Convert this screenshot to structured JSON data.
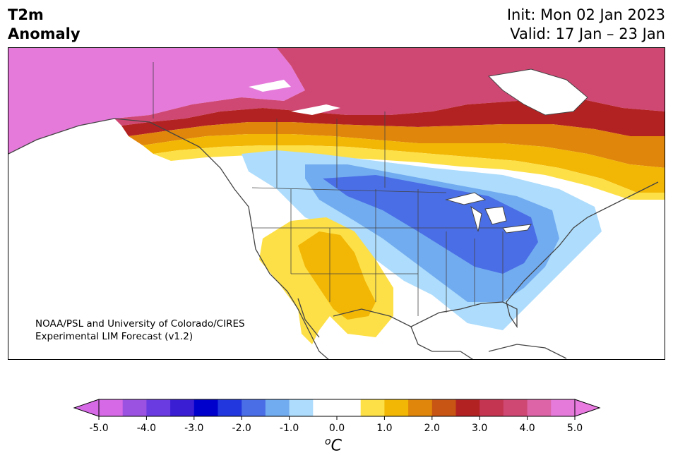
{
  "header": {
    "variable": "T2m",
    "quantity": "Anomaly",
    "init": "Init: Mon 02 Jan 2023",
    "valid": "Valid: 17 Jan – 23 Jan"
  },
  "credit": {
    "line1": "NOAA/PSL and University of Colorado/CIRES",
    "line2": "Experimental LIM Forecast (v1.2)"
  },
  "colorbar": {
    "unit": "C",
    "unit_sup": "o",
    "min": -5.0,
    "max": 5.0,
    "ticks": [
      "-5.0",
      "-4.0",
      "-3.0",
      "-2.0",
      "-1.0",
      "0.0",
      "1.0",
      "2.0",
      "3.0",
      "4.0",
      "5.0"
    ],
    "colors": [
      "#d66ae6",
      "#9b52e0",
      "#6a3be0",
      "#3a1ed4",
      "#0000cc",
      "#2237de",
      "#4a6ee6",
      "#72acf0",
      "#addcfc",
      "#ffffff",
      "#ffffff",
      "#fde047",
      "#f2b705",
      "#e0860a",
      "#c85514",
      "#b32222",
      "#c43552",
      "#cf4874",
      "#dd64a6",
      "#e57adb"
    ],
    "over_color": "#e87ae0",
    "under_color": "#d66ae6"
  },
  "map_colors": {
    "ocean": "#ffffff",
    "land_neutral": "#ffffff",
    "coast": "#444444"
  }
}
